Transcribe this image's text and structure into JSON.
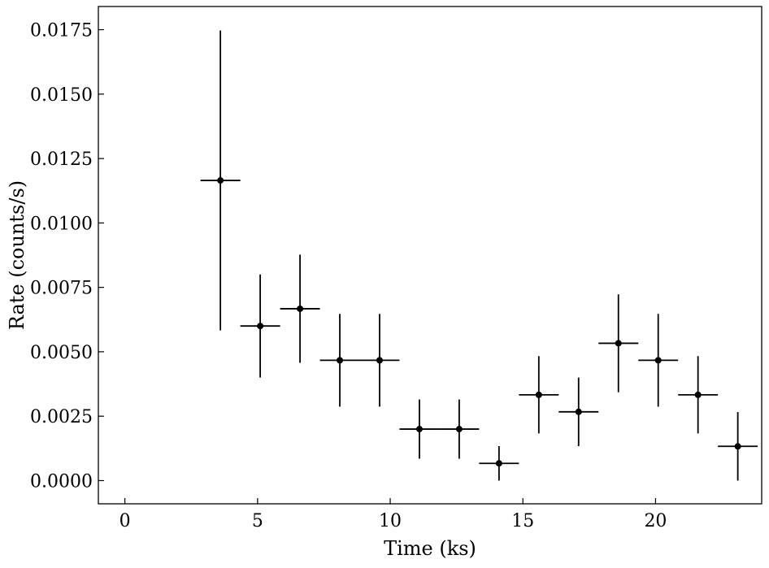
{
  "chart_data": {
    "type": "scatter",
    "xlabel": "Time (ks)",
    "ylabel": "Rate (counts/s)",
    "xlim": [
      -1.0,
      24.0
    ],
    "ylim": [
      -0.0009,
      0.0184
    ],
    "xticks": [
      0,
      5,
      10,
      15,
      20
    ],
    "xtick_labels": [
      "0",
      "5",
      "10",
      "15",
      "20"
    ],
    "yticks": [
      0.0,
      0.0025,
      0.005,
      0.0075,
      0.01,
      0.0125,
      0.015,
      0.0175
    ],
    "ytick_labels": [
      "0.0000",
      "0.0025",
      "0.0050",
      "0.0075",
      "0.0100",
      "0.0125",
      "0.0150",
      "0.0175"
    ],
    "grid": false,
    "legend": false,
    "series": [
      {
        "color": "#000000",
        "x": [
          3.6,
          5.1,
          6.6,
          8.1,
          9.6,
          11.1,
          12.6,
          14.1,
          15.6,
          17.1,
          18.6,
          20.1,
          21.6,
          23.1
        ],
        "y": [
          0.01165,
          0.006,
          0.00667,
          0.00467,
          0.00467,
          0.002,
          0.002,
          0.00067,
          0.00333,
          0.00267,
          0.00533,
          0.00467,
          0.00333,
          0.00133
        ],
        "x_err": [
          0.75,
          0.75,
          0.75,
          0.75,
          0.75,
          0.75,
          0.75,
          0.75,
          0.75,
          0.75,
          0.75,
          0.75,
          0.75,
          0.75
        ],
        "y_err_low": [
          0.00582,
          0.002,
          0.0021,
          0.0018,
          0.0018,
          0.00115,
          0.00115,
          0.00067,
          0.0015,
          0.00133,
          0.0019,
          0.0018,
          0.0015,
          0.00133
        ],
        "y_err_high": [
          0.00582,
          0.002,
          0.0021,
          0.0018,
          0.0018,
          0.00115,
          0.00115,
          0.00067,
          0.0015,
          0.00133,
          0.0019,
          0.0018,
          0.0015,
          0.00133
        ]
      }
    ]
  }
}
